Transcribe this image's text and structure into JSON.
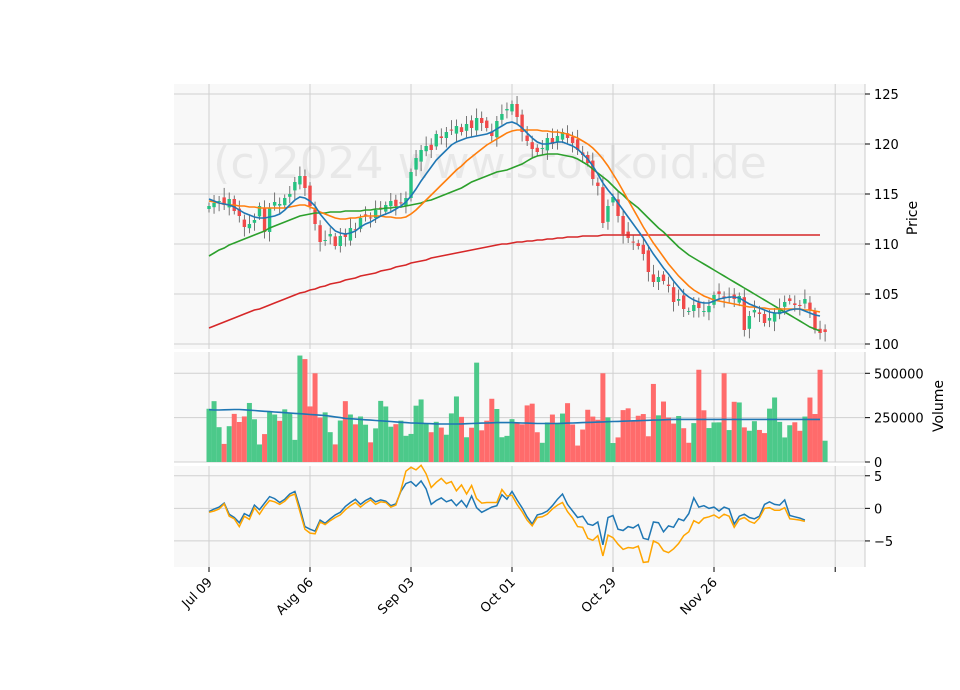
{
  "watermark": "(c)2024 www.stockoid.de",
  "chart_data": {
    "type": "candlestick",
    "x_tick_labels": [
      "Jul 09",
      "Aug 06",
      "Sep 03",
      "Oct 01",
      "Oct 29",
      "Nov 26"
    ],
    "x_tick_days": [
      0,
      20,
      40,
      60,
      80,
      100
    ],
    "price_panel": {
      "ylabel": "Price",
      "ylim": [
        99.5,
        126
      ],
      "yticks": [
        100,
        105,
        110,
        115,
        120,
        125
      ],
      "close_series": [
        113.8,
        114.1,
        114.3,
        113.9,
        114.5,
        113.3,
        112.8,
        111.7,
        112.0,
        112.4,
        113.8,
        111.2,
        113.6,
        114.2,
        114.0,
        114.6,
        115.0,
        116.2,
        116.8,
        115.6,
        113.8,
        112.0,
        110.2,
        110.4,
        111.0,
        109.8,
        110.8,
        110.7,
        111.6,
        111.4,
        112.6,
        112.9,
        112.6,
        113.4,
        113.6,
        113.9,
        114.3,
        113.8,
        114.1,
        114.6,
        117.2,
        118.6,
        119.4,
        119.8,
        119.4,
        121.0,
        120.6,
        121.2,
        121.4,
        121.8,
        121.2,
        122.0,
        121.6,
        122.6,
        122.1,
        121.6,
        120.8,
        122.3,
        123.0,
        123.5,
        124.0,
        122.7,
        121.2,
        120.3,
        119.5,
        119.2,
        119.6,
        120.6,
        120.0,
        120.8,
        121.2,
        120.6,
        120.1,
        119.4,
        118.9,
        118.1,
        116.5,
        115.8,
        112.1,
        113.8,
        114.7,
        112.8,
        111.0,
        110.6,
        110.2,
        109.8,
        109.0,
        107.2,
        106.2,
        106.7,
        106.3,
        105.8,
        104.2,
        104.5,
        103.5,
        103.3,
        103.9,
        103.6,
        103.3,
        103.8,
        104.9,
        105.0,
        104.6,
        104.7,
        104.5,
        104.8,
        101.4,
        102.8,
        103.4,
        103.0,
        102.1,
        102.6,
        103.1,
        103.6,
        104.2,
        104.3,
        103.9,
        103.8,
        104.5,
        103.4,
        101.4,
        101.1,
        101.2
      ],
      "sma_blue": [
        114.5,
        114.3,
        114.1,
        114.0,
        113.9,
        113.7,
        113.4,
        113.1,
        112.9,
        112.7,
        112.6,
        112.6,
        112.7,
        112.8,
        113.0,
        113.4,
        113.9,
        114.4,
        114.7,
        114.6,
        114.3,
        113.8,
        113.0,
        112.4,
        111.8,
        111.3,
        111.1,
        111.0,
        111.1,
        111.3,
        111.7,
        112.0,
        112.2,
        112.5,
        112.8,
        113.0,
        113.2,
        113.5,
        113.8,
        114.2,
        114.8,
        115.5,
        116.3,
        117.0,
        117.7,
        118.4,
        118.9,
        119.4,
        119.9,
        120.2,
        120.4,
        120.6,
        120.7,
        120.8,
        120.9,
        121.0,
        121.2,
        121.5,
        121.8,
        122.1,
        122.2,
        122.0,
        121.6,
        121.1,
        120.6,
        120.2,
        120.0,
        120.0,
        120.1,
        120.2,
        120.2,
        120.0,
        119.8,
        119.5,
        119.0,
        118.5,
        117.8,
        117.0,
        116.1,
        115.4,
        114.8,
        114.1,
        113.4,
        112.7,
        112.0,
        111.3,
        110.6,
        109.8,
        109.0,
        108.3,
        107.6,
        107.0,
        106.3,
        105.7,
        105.1,
        104.7,
        104.4,
        104.2,
        104.1,
        104.1,
        104.3,
        104.5,
        104.6,
        104.7,
        104.7,
        104.6,
        104.3,
        104.0,
        103.8,
        103.6,
        103.4,
        103.2,
        103.1,
        103.1,
        103.2,
        103.4,
        103.5,
        103.5,
        103.3,
        103.1,
        102.9,
        102.8
      ],
      "sma_orange": [
        114.3,
        114.2,
        114.1,
        114.0,
        113.9,
        113.9,
        113.8,
        113.8,
        113.7,
        113.7,
        113.6,
        113.6,
        113.6,
        113.6,
        113.6,
        113.6,
        113.7,
        113.8,
        113.9,
        113.9,
        113.7,
        113.5,
        113.2,
        113.0,
        112.8,
        112.6,
        112.5,
        112.5,
        112.6,
        112.6,
        112.7,
        112.8,
        112.8,
        112.8,
        112.8,
        112.7,
        112.7,
        112.6,
        112.6,
        112.7,
        113.0,
        113.4,
        113.9,
        114.4,
        114.9,
        115.4,
        115.9,
        116.4,
        116.9,
        117.4,
        117.8,
        118.3,
        118.7,
        119.1,
        119.5,
        119.9,
        120.2,
        120.5,
        120.8,
        121.1,
        121.3,
        121.4,
        121.4,
        121.4,
        121.4,
        121.4,
        121.3,
        121.3,
        121.2,
        121.2,
        121.1,
        121.0,
        120.8,
        120.6,
        120.3,
        120.0,
        119.6,
        119.1,
        118.5,
        117.8,
        117.0,
        116.2,
        115.3,
        114.4,
        113.5,
        112.6,
        111.7,
        110.9,
        110.1,
        109.4,
        108.7,
        108.0,
        107.4,
        106.8,
        106.3,
        105.8,
        105.4,
        105.1,
        104.8,
        104.6,
        104.4,
        104.3,
        104.2,
        104.1,
        104.0,
        103.9,
        103.8,
        103.7,
        103.7,
        103.6,
        103.6,
        103.5,
        103.5,
        103.5,
        103.5,
        103.5,
        103.5,
        103.5,
        103.4,
        103.4,
        103.3,
        103.2
      ],
      "sma_green": [
        108.8,
        109.1,
        109.4,
        109.6,
        109.9,
        110.1,
        110.3,
        110.5,
        110.7,
        110.9,
        111.1,
        111.3,
        111.6,
        111.8,
        112.0,
        112.2,
        112.4,
        112.6,
        112.8,
        112.9,
        113.0,
        113.1,
        113.1,
        113.1,
        113.2,
        113.2,
        113.2,
        113.3,
        113.3,
        113.3,
        113.3,
        113.4,
        113.4,
        113.5,
        113.5,
        113.6,
        113.6,
        113.7,
        113.7,
        113.8,
        113.9,
        114.0,
        114.1,
        114.3,
        114.4,
        114.6,
        114.8,
        115.0,
        115.2,
        115.4,
        115.6,
        115.9,
        116.2,
        116.4,
        116.6,
        116.8,
        117.0,
        117.2,
        117.3,
        117.4,
        117.6,
        117.8,
        118.0,
        118.3,
        118.6,
        118.8,
        118.9,
        119.0,
        119.0,
        119.0,
        118.9,
        118.8,
        118.7,
        118.5,
        118.2,
        117.9,
        117.5,
        117.1,
        116.7,
        116.3,
        115.8,
        115.3,
        114.9,
        114.4,
        114.0,
        113.6,
        113.1,
        112.6,
        112.1,
        111.6,
        111.2,
        110.7,
        110.2,
        109.7,
        109.3,
        108.9,
        108.6,
        108.3,
        108.0,
        107.7,
        107.4,
        107.1,
        106.8,
        106.5,
        106.2,
        105.9,
        105.6,
        105.3,
        105.0,
        104.7,
        104.4,
        104.1,
        103.8,
        103.5,
        103.2,
        102.9,
        102.6,
        102.3,
        102.0,
        101.7,
        101.5,
        101.3
      ],
      "sma_red": [
        101.6,
        101.8,
        102.0,
        102.2,
        102.4,
        102.6,
        102.8,
        103.0,
        103.2,
        103.4,
        103.5,
        103.7,
        103.9,
        104.1,
        104.3,
        104.5,
        104.7,
        104.9,
        105.1,
        105.2,
        105.4,
        105.5,
        105.7,
        105.8,
        106.0,
        106.1,
        106.2,
        106.4,
        106.5,
        106.6,
        106.8,
        106.9,
        107.0,
        107.1,
        107.3,
        107.4,
        107.5,
        107.7,
        107.8,
        107.9,
        108.1,
        108.2,
        108.3,
        108.4,
        108.6,
        108.7,
        108.8,
        108.9,
        109.0,
        109.1,
        109.2,
        109.3,
        109.4,
        109.5,
        109.6,
        109.7,
        109.8,
        109.9,
        110.0,
        110.0,
        110.1,
        110.2,
        110.2,
        110.3,
        110.3,
        110.4,
        110.4,
        110.5,
        110.5,
        110.6,
        110.6,
        110.7,
        110.7,
        110.7,
        110.8,
        110.8,
        110.8,
        110.8,
        110.9,
        110.9,
        110.9,
        110.9,
        110.9,
        110.9,
        110.9,
        110.9,
        110.9,
        110.9,
        110.9,
        110.9,
        110.9,
        110.9,
        110.9,
        110.9,
        110.9,
        110.9,
        110.9,
        110.9,
        110.9,
        110.9,
        110.9,
        110.9,
        110.9,
        110.9,
        110.9,
        110.9,
        110.9,
        110.9,
        110.9,
        110.9,
        110.9,
        110.9,
        110.9,
        110.9,
        110.9,
        110.9,
        110.9,
        110.9,
        110.9,
        110.9,
        110.9,
        110.9
      ]
    },
    "volume_panel": {
      "ylabel": "Volume",
      "ylim": [
        0,
        620000
      ],
      "yticks": [
        0,
        250000,
        500000
      ],
      "volume_ma": [
        295000,
        293000,
        293000,
        294000,
        295000,
        296000,
        296000,
        294000,
        292000,
        290000,
        288000,
        286000,
        284000,
        282000,
        280000,
        278000,
        276000,
        274000,
        272000,
        270000,
        268000,
        266000,
        264000,
        262000,
        258000,
        254000,
        250000,
        246000,
        244000,
        242000,
        240000,
        238000,
        236000,
        234000,
        232000,
        230000,
        228000,
        226000,
        224000,
        222000,
        220000,
        219000,
        218000,
        217000,
        216000,
        215000,
        214000,
        214000,
        214000,
        214000,
        215000,
        216000,
        217000,
        218000,
        219000,
        220000,
        221000,
        222000,
        222000,
        222000,
        222000,
        221000,
        220000,
        219000,
        218000,
        217000,
        217000,
        217000,
        217000,
        217000,
        218000,
        219000,
        220000,
        221000,
        222000,
        223000,
        224000,
        225000,
        226000,
        227000,
        228000,
        229000,
        230000,
        231000,
        232000,
        233000,
        234000,
        235000,
        236000,
        237000,
        238000,
        239000,
        240000,
        240000,
        240000,
        240000,
        240000,
        240000,
        240000,
        240000,
        240000,
        240000,
        240000,
        240000,
        240000,
        240000,
        240000,
        240000,
        240000,
        240000,
        240000,
        240000,
        240000,
        240000,
        240000,
        240000,
        240000,
        240000,
        240000,
        240000,
        240000,
        240000
      ]
    },
    "indicator_panel": {
      "ylim": [
        -9,
        6.5
      ],
      "yticks": [
        -5,
        0,
        5
      ],
      "series": [
        {
          "color": "#1f77b4",
          "values": [
            -0.5,
            -0.1,
            0.2,
            0.8,
            -0.9,
            -1.4,
            -2.2,
            -0.8,
            -1.2,
            0.5,
            -0.2,
            0.8,
            1.8,
            1.5,
            0.9,
            1.4,
            2.2,
            2.6,
            0.1,
            -2.8,
            -3.2,
            -3.5,
            -1.8,
            -2.3,
            -1.6,
            -1.0,
            -0.6,
            0.3,
            0.9,
            1.4,
            0.6,
            1.2,
            1.6,
            1.0,
            1.3,
            1.1,
            0.4,
            0.7,
            2.6,
            3.8,
            4.1,
            3.4,
            4.2,
            3.0,
            0.6,
            1.2,
            1.6,
            1.0,
            1.3,
            0.4,
            1.2,
            0.2,
            1.9,
            0.1,
            -0.6,
            -0.2,
            0.2,
            0.4,
            2.1,
            1.4,
            2.6,
            1.3,
            0.1,
            -1.3,
            -2.4,
            -1.0,
            -0.8,
            -0.4,
            0.4,
            1.4,
            2.2,
            0.6,
            -0.4,
            -1.4,
            -1.2,
            -2.4,
            -2.6,
            -2.1,
            -5.6,
            -1.4,
            -1.1,
            -3.2,
            -3.4,
            -2.8,
            -3.0,
            -2.5,
            -4.6,
            -4.8,
            -2.1,
            -2.2,
            -3.6,
            -2.7,
            -2.9,
            -1.6,
            -1.9,
            -0.8,
            1.6,
            0.2,
            0.4,
            0.0,
            0.2,
            -0.4,
            0.2,
            -0.1,
            -2.4,
            -1.2,
            -0.9,
            -1.4,
            -1.6,
            -1.2,
            0.6,
            1.0,
            0.6,
            0.5,
            1.3,
            -1.1,
            -1.3,
            -1.5,
            -1.8
          ]
        },
        {
          "color": "#ffa500",
          "values": [
            -0.6,
            -0.4,
            -0.1,
            0.7,
            -1.2,
            -1.6,
            -2.8,
            -1.2,
            -1.7,
            0.1,
            -0.9,
            0.3,
            1.2,
            1.0,
            0.6,
            1.1,
            1.9,
            2.2,
            -0.5,
            -3.2,
            -3.8,
            -3.9,
            -2.1,
            -2.5,
            -1.9,
            -1.4,
            -1.0,
            -0.2,
            0.4,
            0.9,
            0.2,
            0.8,
            1.3,
            0.6,
            1.0,
            0.9,
            0.2,
            0.5,
            2.8,
            5.7,
            6.3,
            5.9,
            6.6,
            5.3,
            3.2,
            4.0,
            4.6,
            3.8,
            4.1,
            2.7,
            3.6,
            2.2,
            3.5,
            1.5,
            0.8,
            0.9,
            0.9,
            0.9,
            2.9,
            1.9,
            2.0,
            0.6,
            -0.5,
            -1.8,
            -2.7,
            -1.4,
            -1.3,
            -0.9,
            -0.1,
            0.5,
            0.9,
            -0.5,
            -1.5,
            -2.8,
            -2.9,
            -4.6,
            -4.9,
            -4.2,
            -7.3,
            -4.1,
            -4.5,
            -5.5,
            -6.3,
            -6.0,
            -6.1,
            -5.8,
            -8.3,
            -8.2,
            -5.0,
            -5.4,
            -6.5,
            -6.8,
            -6.2,
            -5.4,
            -4.2,
            -3.6,
            -1.9,
            -2.3,
            -1.5,
            -1.3,
            -1.0,
            -1.5,
            -0.9,
            -1.2,
            -2.9,
            -1.7,
            -1.4,
            -2.0,
            -2.3,
            -1.5,
            0.0,
            0.1,
            -0.3,
            -0.3,
            0.1,
            -1.6,
            -1.7,
            -1.8,
            -2.0
          ]
        }
      ]
    }
  }
}
